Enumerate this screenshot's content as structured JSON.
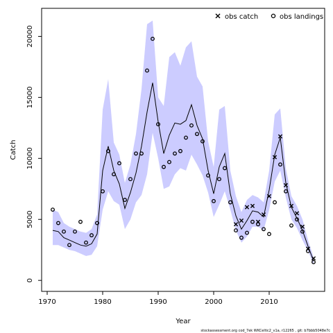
{
  "chart_data": {
    "type": "line",
    "title": "",
    "xlabel": "Year",
    "ylabel": "Catch",
    "xlim": [
      1969,
      2020
    ],
    "ylim": [
      -900,
      22300
    ],
    "x_ticks": [
      1970,
      1980,
      1990,
      2000,
      2010
    ],
    "y_ticks": [
      0,
      5000,
      10000,
      15000,
      20000
    ],
    "legend_position": "top-right",
    "grid": false,
    "colors": {
      "band": "#ccccff",
      "line": "#000000",
      "points": "#000000"
    },
    "series": [
      {
        "name": "",
        "kind": "estimate",
        "x": [
          1971,
          1972,
          1973,
          1974,
          1975,
          1976,
          1977,
          1978,
          1979,
          1980,
          1981,
          1982,
          1983,
          1984,
          1985,
          1986,
          1987,
          1988,
          1989,
          1990,
          1991,
          1992,
          1993,
          1994,
          1995,
          1996,
          1997,
          1998,
          1999,
          2000,
          2001,
          2002,
          2003,
          2004,
          2005,
          2006,
          2007,
          2008,
          2009,
          2010,
          2011,
          2012,
          2013,
          2014,
          2015,
          2016,
          2017,
          2018
        ],
        "y": [
          4100,
          4000,
          3500,
          3300,
          3100,
          2900,
          2800,
          3000,
          3800,
          9000,
          11000,
          9000,
          7900,
          5900,
          7200,
          8800,
          11000,
          13800,
          16200,
          13000,
          10400,
          11900,
          12900,
          12800,
          13100,
          14400,
          12700,
          11600,
          9000,
          7100,
          9300,
          10400,
          7100,
          5300,
          4200,
          4900,
          5700,
          5600,
          5200,
          7400,
          10300,
          11700,
          8000,
          6000,
          5100,
          4100,
          2800,
          1600
        ]
      },
      {
        "name": "",
        "kind": "confidence_upper",
        "x": [
          1971,
          1972,
          1973,
          1974,
          1975,
          1976,
          1977,
          1978,
          1979,
          1980,
          1981,
          1982,
          1983,
          1984,
          1985,
          1986,
          1987,
          1988,
          1989,
          1990,
          1991,
          1992,
          1993,
          1994,
          1995,
          1996,
          1997,
          1998,
          1999,
          2000,
          2001,
          2002,
          2003,
          2004,
          2005,
          2006,
          2007,
          2008,
          2009,
          2010,
          2011,
          2012,
          2013,
          2014,
          2015,
          2016,
          2017,
          2018
        ],
        "y": [
          5800,
          5600,
          4700,
          4400,
          4200,
          4000,
          3900,
          4200,
          5400,
          14000,
          16500,
          11300,
          10300,
          8000,
          9500,
          12000,
          15700,
          21000,
          21300,
          15000,
          14300,
          18300,
          18700,
          17600,
          19100,
          19600,
          16700,
          15900,
          11400,
          9300,
          14000,
          14300,
          9000,
          6900,
          5600,
          6600,
          7000,
          6800,
          6400,
          9000,
          13600,
          14100,
          9200,
          6900,
          6100,
          5000,
          3300,
          1900
        ]
      },
      {
        "name": "",
        "kind": "confidence_lower",
        "x": [
          1971,
          1972,
          1973,
          1974,
          1975,
          1976,
          1977,
          1978,
          1979,
          1980,
          1981,
          1982,
          1983,
          1984,
          1985,
          1986,
          1987,
          1988,
          1989,
          1990,
          1991,
          1992,
          1993,
          1994,
          1995,
          1996,
          1997,
          1998,
          1999,
          2000,
          2001,
          2002,
          2003,
          2004,
          2005,
          2006,
          2007,
          2008,
          2009,
          2010,
          2011,
          2012,
          2013,
          2014,
          2015,
          2016,
          2017,
          2018
        ],
        "y": [
          2900,
          2900,
          2700,
          2500,
          2400,
          2200,
          2000,
          2100,
          2800,
          5800,
          7300,
          6500,
          6200,
          4200,
          5000,
          6400,
          7000,
          8700,
          12100,
          10000,
          7500,
          7700,
          8700,
          9200,
          9000,
          10300,
          9500,
          8600,
          7200,
          5200,
          6200,
          7300,
          5800,
          4100,
          3100,
          3600,
          4400,
          4400,
          4100,
          5800,
          8100,
          9000,
          6800,
          5000,
          4300,
          3300,
          2400,
          1300
        ]
      },
      {
        "name": "obs catch",
        "kind": "observed",
        "marker": "x",
        "x": [
          2004,
          2005,
          2006,
          2007,
          2008,
          2009,
          2010,
          2011,
          2012,
          2013,
          2014,
          2015,
          2016,
          2017,
          2018
        ],
        "y": [
          4600,
          4900,
          6000,
          6100,
          4800,
          5400,
          6900,
          10100,
          11800,
          7800,
          6100,
          5500,
          4400,
          2600,
          1800
        ]
      },
      {
        "name": "obs landings",
        "kind": "observed",
        "marker": "o",
        "x": [
          1971,
          1972,
          1973,
          1974,
          1975,
          1976,
          1977,
          1978,
          1979,
          1980,
          1981,
          1982,
          1983,
          1984,
          1985,
          1986,
          1987,
          1988,
          1989,
          1990,
          1991,
          1992,
          1993,
          1994,
          1995,
          1996,
          1997,
          1998,
          1999,
          2000,
          2001,
          2002,
          2003,
          2004,
          2005,
          2006,
          2007,
          2008,
          2009,
          2010,
          2011,
          2012,
          2013,
          2014,
          2015,
          2016,
          2017,
          2018
        ],
        "y": [
          5800,
          4700,
          4000,
          2900,
          4000,
          4800,
          3100,
          3700,
          4700,
          7300,
          10600,
          8700,
          9600,
          6600,
          8300,
          10400,
          10400,
          17200,
          19800,
          12800,
          9300,
          9700,
          10400,
          10600,
          11700,
          12700,
          12000,
          11400,
          8600,
          6500,
          8300,
          9200,
          6400,
          4100,
          3500,
          3900,
          4800,
          4600,
          4200,
          3800,
          6400,
          9500,
          7300,
          4500,
          5000,
          4000,
          2400,
          1500
        ]
      }
    ]
  },
  "footer_text": "stockassessment.org  cod_7ek  WKCeltic2_v1a,  r12265 ,  git: b7bbb5048e7c"
}
